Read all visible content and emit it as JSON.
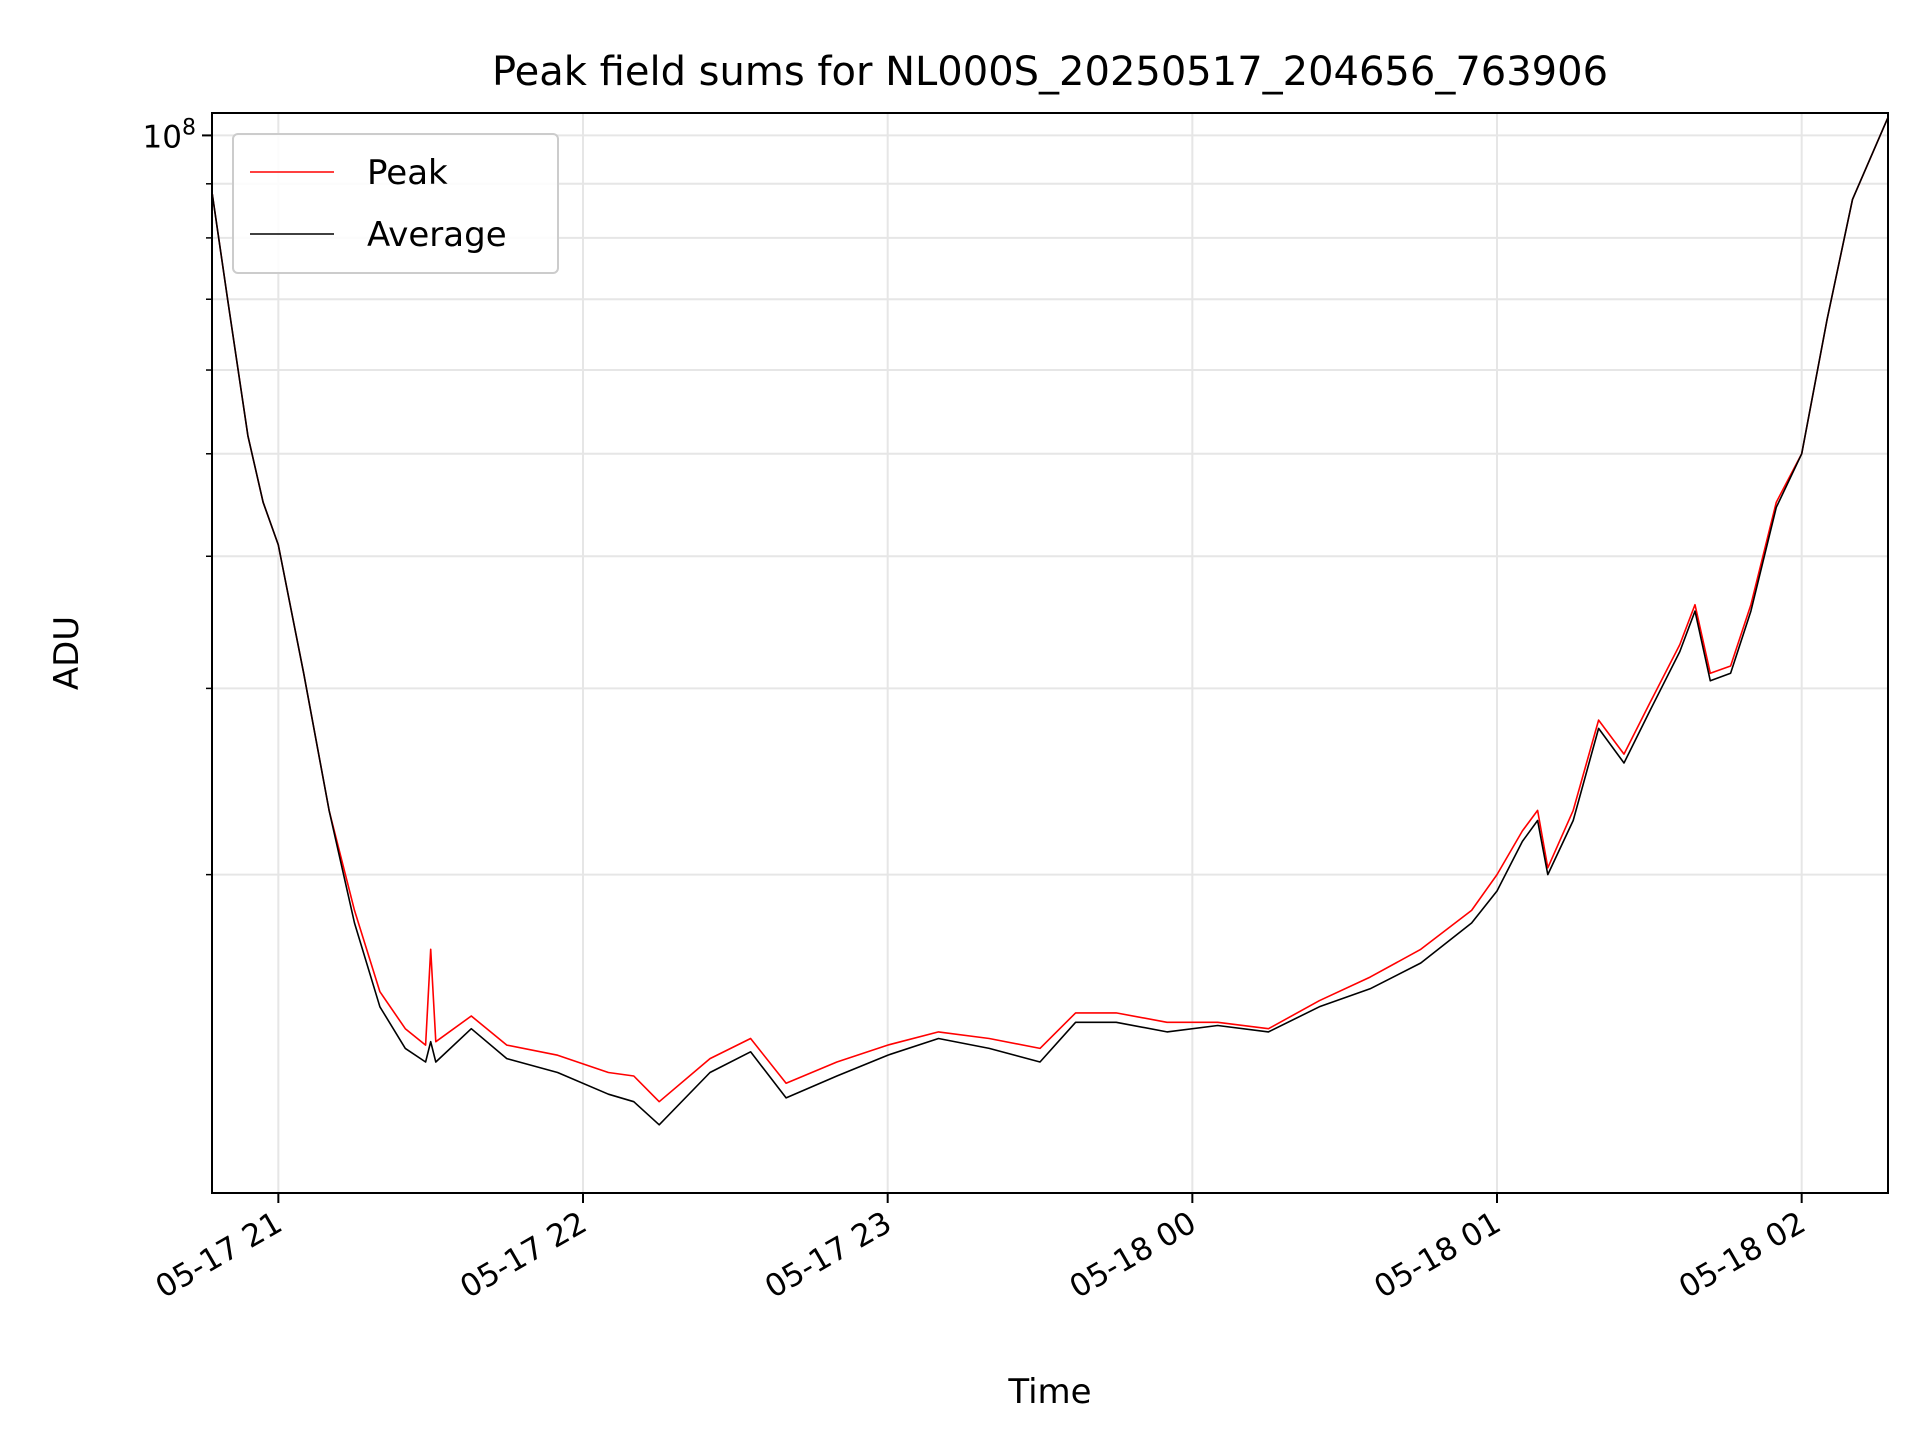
{
  "chart_data": {
    "type": "line",
    "title": "Peak field sums for NL000S_20250517_204656_763906",
    "xlabel": "Time",
    "ylabel": "ADU",
    "y_scale": "log",
    "xlim": [
      "2025-05-17T20:46:56",
      "2025-05-18T02:17:00"
    ],
    "ylim": [
      10000000,
      105000000
    ],
    "x_ticks": [
      {
        "time": "2025-05-17T21:00",
        "label": "05-17 21"
      },
      {
        "time": "2025-05-17T22:00",
        "label": "05-17 22"
      },
      {
        "time": "2025-05-17T23:00",
        "label": "05-17 23"
      },
      {
        "time": "2025-05-18T00:00",
        "label": "05-18 00"
      },
      {
        "time": "2025-05-18T01:00",
        "label": "05-18 01"
      },
      {
        "time": "2025-05-18T02:00",
        "label": "05-18 02"
      }
    ],
    "y_major_ticks": [
      {
        "value": 100000000,
        "label": "10^8"
      }
    ],
    "y_minor_ticks": [
      20000000,
      30000000,
      40000000,
      50000000,
      60000000,
      70000000,
      80000000,
      90000000
    ],
    "grid": true,
    "legend_position": "upper-left",
    "series": [
      {
        "name": "Peak",
        "color": "#ff0000",
        "points": [
          [
            "2025-05-17T20:47",
            88000000
          ],
          [
            "2025-05-17T20:50",
            70000000
          ],
          [
            "2025-05-17T20:54",
            52000000
          ],
          [
            "2025-05-17T20:57",
            45000000
          ],
          [
            "2025-05-17T21:00",
            41000000
          ],
          [
            "2025-05-17T21:05",
            31000000
          ],
          [
            "2025-05-17T21:10",
            23000000
          ],
          [
            "2025-05-17T21:15",
            18500000
          ],
          [
            "2025-05-17T21:20",
            15500000
          ],
          [
            "2025-05-17T21:25",
            14300000
          ],
          [
            "2025-05-17T21:29",
            13800000
          ],
          [
            "2025-05-17T21:30",
            17000000
          ],
          [
            "2025-05-17T21:31",
            13900000
          ],
          [
            "2025-05-17T21:38",
            14700000
          ],
          [
            "2025-05-17T21:45",
            13800000
          ],
          [
            "2025-05-17T21:55",
            13500000
          ],
          [
            "2025-05-17T22:05",
            13000000
          ],
          [
            "2025-05-17T22:10",
            12900000
          ],
          [
            "2025-05-17T22:15",
            12200000
          ],
          [
            "2025-05-17T22:25",
            13400000
          ],
          [
            "2025-05-17T22:33",
            14000000
          ],
          [
            "2025-05-17T22:40",
            12700000
          ],
          [
            "2025-05-17T22:50",
            13300000
          ],
          [
            "2025-05-17T23:00",
            13800000
          ],
          [
            "2025-05-17T23:10",
            14200000
          ],
          [
            "2025-05-17T23:20",
            14000000
          ],
          [
            "2025-05-17T23:30",
            13700000
          ],
          [
            "2025-05-17T23:37",
            14800000
          ],
          [
            "2025-05-17T23:45",
            14800000
          ],
          [
            "2025-05-17T23:55",
            14500000
          ],
          [
            "2025-05-18T00:05",
            14500000
          ],
          [
            "2025-05-18T00:15",
            14300000
          ],
          [
            "2025-05-18T00:25",
            15200000
          ],
          [
            "2025-05-18T00:35",
            16000000
          ],
          [
            "2025-05-18T00:45",
            17000000
          ],
          [
            "2025-05-18T00:55",
            18500000
          ],
          [
            "2025-05-18T01:00",
            20000000
          ],
          [
            "2025-05-18T01:05",
            22000000
          ],
          [
            "2025-05-18T01:08",
            23000000
          ],
          [
            "2025-05-18T01:10",
            20300000
          ],
          [
            "2025-05-18T01:15",
            23000000
          ],
          [
            "2025-05-18T01:20",
            28000000
          ],
          [
            "2025-05-18T01:25",
            26000000
          ],
          [
            "2025-05-18T01:30",
            29000000
          ],
          [
            "2025-05-18T01:36",
            33000000
          ],
          [
            "2025-05-18T01:39",
            36000000
          ],
          [
            "2025-05-18T01:42",
            31000000
          ],
          [
            "2025-05-18T01:46",
            31500000
          ],
          [
            "2025-05-18T01:50",
            36000000
          ],
          [
            "2025-05-18T01:55",
            45000000
          ],
          [
            "2025-05-18T02:00",
            50000000
          ],
          [
            "2025-05-18T02:05",
            67000000
          ],
          [
            "2025-05-18T02:10",
            87000000
          ],
          [
            "2025-05-18T02:17",
            104000000
          ]
        ]
      },
      {
        "name": "Average",
        "color": "#000000",
        "points": [
          [
            "2025-05-17T20:47",
            88000000
          ],
          [
            "2025-05-17T20:50",
            70000000
          ],
          [
            "2025-05-17T20:54",
            52000000
          ],
          [
            "2025-05-17T20:57",
            45000000
          ],
          [
            "2025-05-17T21:00",
            41000000
          ],
          [
            "2025-05-17T21:05",
            31000000
          ],
          [
            "2025-05-17T21:10",
            23000000
          ],
          [
            "2025-05-17T21:15",
            18000000
          ],
          [
            "2025-05-17T21:20",
            15000000
          ],
          [
            "2025-05-17T21:25",
            13700000
          ],
          [
            "2025-05-17T21:29",
            13300000
          ],
          [
            "2025-05-17T21:30",
            13900000
          ],
          [
            "2025-05-17T21:31",
            13300000
          ],
          [
            "2025-05-17T21:38",
            14300000
          ],
          [
            "2025-05-17T21:45",
            13400000
          ],
          [
            "2025-05-17T21:55",
            13000000
          ],
          [
            "2025-05-17T22:05",
            12400000
          ],
          [
            "2025-05-17T22:10",
            12200000
          ],
          [
            "2025-05-17T22:15",
            11600000
          ],
          [
            "2025-05-17T22:25",
            13000000
          ],
          [
            "2025-05-17T22:33",
            13600000
          ],
          [
            "2025-05-17T22:40",
            12300000
          ],
          [
            "2025-05-17T22:50",
            12900000
          ],
          [
            "2025-05-17T23:00",
            13500000
          ],
          [
            "2025-05-17T23:10",
            14000000
          ],
          [
            "2025-05-17T23:20",
            13700000
          ],
          [
            "2025-05-17T23:30",
            13300000
          ],
          [
            "2025-05-17T23:37",
            14500000
          ],
          [
            "2025-05-17T23:45",
            14500000
          ],
          [
            "2025-05-17T23:55",
            14200000
          ],
          [
            "2025-05-18T00:05",
            14400000
          ],
          [
            "2025-05-18T00:15",
            14200000
          ],
          [
            "2025-05-18T00:25",
            15000000
          ],
          [
            "2025-05-18T00:35",
            15600000
          ],
          [
            "2025-05-18T00:45",
            16500000
          ],
          [
            "2025-05-18T00:55",
            18000000
          ],
          [
            "2025-05-18T01:00",
            19300000
          ],
          [
            "2025-05-18T01:05",
            21500000
          ],
          [
            "2025-05-18T01:08",
            22500000
          ],
          [
            "2025-05-18T01:10",
            20000000
          ],
          [
            "2025-05-18T01:15",
            22500000
          ],
          [
            "2025-05-18T01:20",
            27500000
          ],
          [
            "2025-05-18T01:25",
            25500000
          ],
          [
            "2025-05-18T01:30",
            28500000
          ],
          [
            "2025-05-18T01:36",
            32500000
          ],
          [
            "2025-05-18T01:39",
            35500000
          ],
          [
            "2025-05-18T01:42",
            30500000
          ],
          [
            "2025-05-18T01:46",
            31000000
          ],
          [
            "2025-05-18T01:50",
            35500000
          ],
          [
            "2025-05-18T01:55",
            44500000
          ],
          [
            "2025-05-18T02:00",
            50000000
          ],
          [
            "2025-05-18T02:05",
            67000000
          ],
          [
            "2025-05-18T02:10",
            87000000
          ],
          [
            "2025-05-18T02:17",
            104000000
          ]
        ]
      }
    ]
  }
}
